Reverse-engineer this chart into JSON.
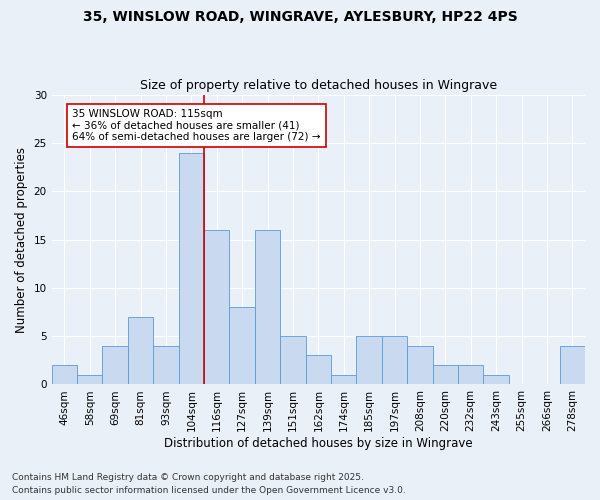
{
  "title_line1": "35, WINSLOW ROAD, WINGRAVE, AYLESBURY, HP22 4PS",
  "title_line2": "Size of property relative to detached houses in Wingrave",
  "xlabel": "Distribution of detached houses by size in Wingrave",
  "ylabel": "Number of detached properties",
  "footnote1": "Contains HM Land Registry data © Crown copyright and database right 2025.",
  "footnote2": "Contains public sector information licensed under the Open Government Licence v3.0.",
  "bar_labels": [
    "46sqm",
    "58sqm",
    "69sqm",
    "81sqm",
    "93sqm",
    "104sqm",
    "116sqm",
    "127sqm",
    "139sqm",
    "151sqm",
    "162sqm",
    "174sqm",
    "185sqm",
    "197sqm",
    "208sqm",
    "220sqm",
    "232sqm",
    "243sqm",
    "255sqm",
    "266sqm",
    "278sqm"
  ],
  "bar_values": [
    2,
    1,
    4,
    7,
    4,
    24,
    16,
    8,
    16,
    5,
    3,
    1,
    5,
    5,
    4,
    2,
    2,
    1,
    0,
    0,
    4
  ],
  "bar_color": "#c9d9f0",
  "bar_edge_color": "#5b9bd5",
  "vline_x_bar_index": 6,
  "vline_color": "#cc0000",
  "annotation_line1": "35 WINSLOW ROAD: 115sqm",
  "annotation_line2": "← 36% of detached houses are smaller (41)",
  "annotation_line3": "64% of semi-detached houses are larger (72) →",
  "annotation_box_color": "#ffffff",
  "annotation_box_edge_color": "#cc0000",
  "ylim": [
    0,
    30
  ],
  "yticks": [
    0,
    5,
    10,
    15,
    20,
    25,
    30
  ],
  "bg_color": "#eaf0f8",
  "title_fontsize": 10,
  "subtitle_fontsize": 9,
  "axis_label_fontsize": 8.5,
  "tick_fontsize": 7.5,
  "annotation_fontsize": 7.5,
  "footnote_fontsize": 6.5
}
